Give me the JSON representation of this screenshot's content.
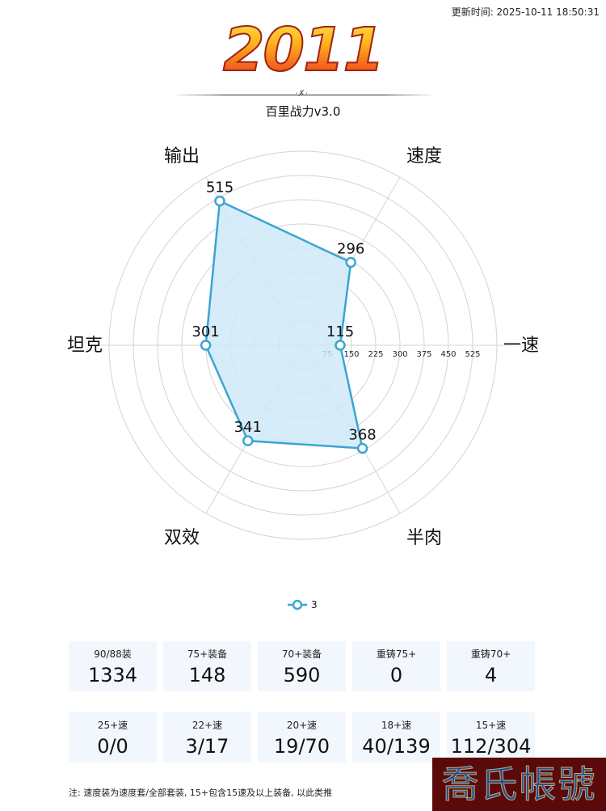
{
  "header": {
    "update_time": "更新时间: 2025-10-11 18:50:31",
    "logo_year": "2011",
    "subtitle": "百里战力v3.0",
    "ornament": "·✗·"
  },
  "chart_data": {
    "type": "radar",
    "title": "百里战力v3.0",
    "axes": [
      "一速",
      "速度",
      "输出",
      "坦克",
      "双效",
      "半肉"
    ],
    "series": [
      {
        "name": "3",
        "values": [
          115,
          296,
          515,
          301,
          341,
          368
        ]
      }
    ],
    "radial_ticks": [
      75,
      150,
      225,
      300,
      375,
      450,
      525
    ],
    "range": [
      0,
      600
    ],
    "grid": true,
    "legend_position": "bottom",
    "colors": {
      "line": "#3aa5d3",
      "fill": "#cfe9f7",
      "grid": "#d4d4d4"
    }
  },
  "legend": {
    "label": "3"
  },
  "stats_row1": [
    {
      "label": "90/88装",
      "value": "1334"
    },
    {
      "label": "75+装备",
      "value": "148"
    },
    {
      "label": "70+装备",
      "value": "590"
    },
    {
      "label": "重铸75+",
      "value": "0"
    },
    {
      "label": "重铸70+",
      "value": "4"
    }
  ],
  "stats_row2": [
    {
      "label": "25+速",
      "value": "0/0"
    },
    {
      "label": "22+速",
      "value": "3/17"
    },
    {
      "label": "20+速",
      "value": "19/70"
    },
    {
      "label": "18+速",
      "value": "40/139"
    },
    {
      "label": "15+速",
      "value": "112/304"
    }
  ],
  "note": "注: 速度装为速度套/全部套装, 15+包含15速及以上装备, 以此类推",
  "watermark": "喬氏帳號"
}
